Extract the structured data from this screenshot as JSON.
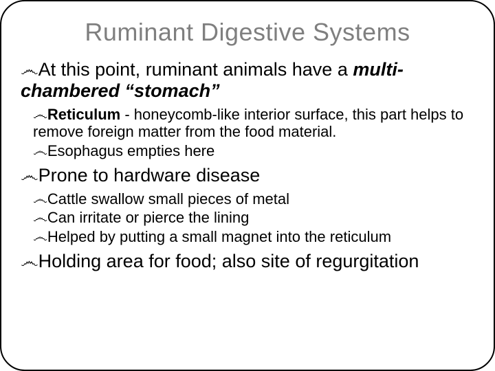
{
  "title": "Ruminant Digestive Systems",
  "bullet_glyph": "෴",
  "colors": {
    "title": "#7f7f7f",
    "text": "#000000",
    "border": "#000000",
    "background": "#ffffff"
  },
  "typography": {
    "title_fontsize": 36,
    "lvl1_fontsize": 27,
    "lvl2_fontsize": 22,
    "font_family": "Arial"
  },
  "b1": {
    "pre": "At this point, ruminant animals have a ",
    "em": "multi-chambered “stomach”"
  },
  "b1s1": {
    "strong": "Reticulum",
    "rest": " - honeycomb-like interior surface, this part helps to remove foreign matter from the food material."
  },
  "b1s2": "Esophagus empties here",
  "b2": "Prone to hardware disease",
  "b2s1": "Cattle swallow small pieces of metal",
  "b2s2": "Can irritate or pierce the lining",
  "b2s3": "Helped by putting a small magnet into the reticulum",
  "b3": "Holding area for food; also site of regurgitation"
}
